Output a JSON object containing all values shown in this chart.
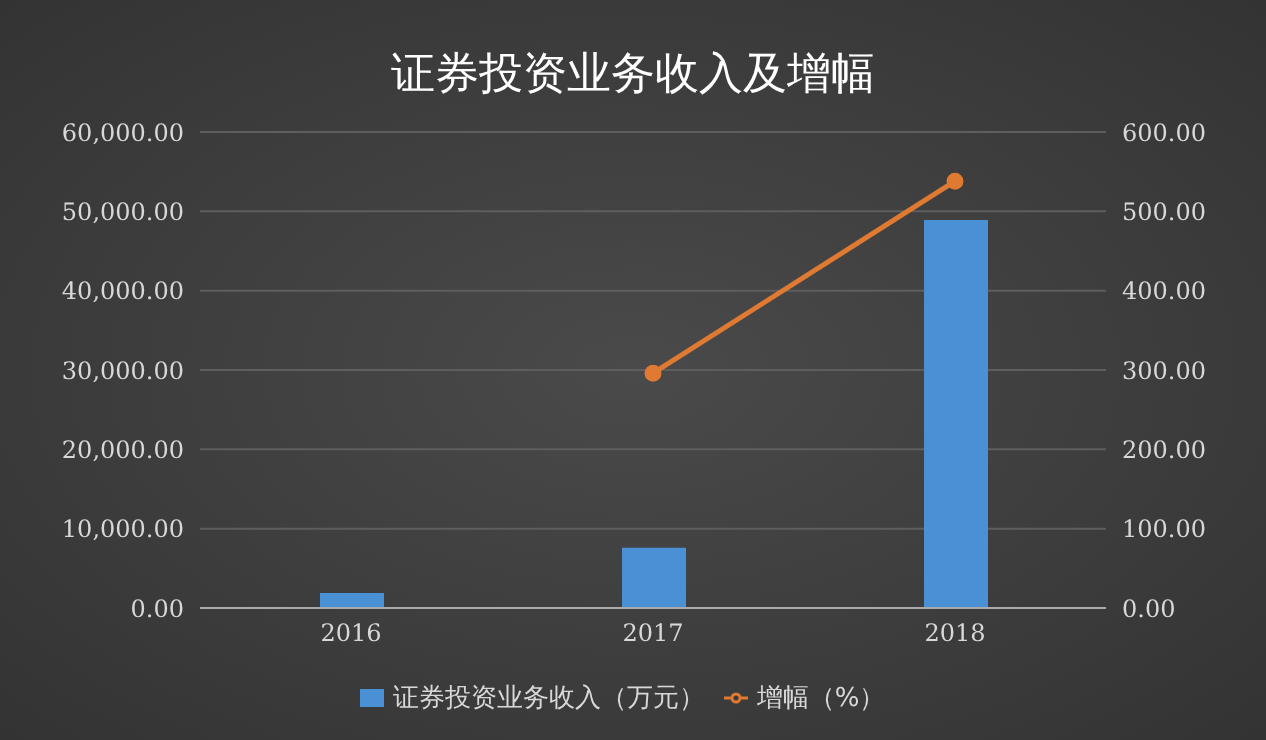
{
  "chart_data": {
    "type": "bar",
    "title": "证券投资业务收入及增幅",
    "categories": [
      "2016",
      "2017",
      "2018"
    ],
    "series": [
      {
        "name": "证券投资业务收入（万元）",
        "color": "#4a90d4",
        "values": [
          1900,
          7600,
          48900
        ]
      },
      {
        "name": "增幅（%）",
        "type": "line",
        "axis": "y2",
        "color": "#e07a32",
        "marker": "circle",
        "values": [
          null,
          296,
          538
        ]
      }
    ],
    "ylim": [
      0,
      60000
    ],
    "yticks": [
      {
        "value": 0,
        "label": "0.00"
      },
      {
        "value": 10000,
        "label": "10,000.00"
      },
      {
        "value": 20000,
        "label": "20,000.00"
      },
      {
        "value": 30000,
        "label": "30,000.00"
      },
      {
        "value": 40000,
        "label": "40,000.00"
      },
      {
        "value": 50000,
        "label": "50,000.00"
      },
      {
        "value": 60000,
        "label": "60,000.00"
      }
    ],
    "y2lim": [
      0,
      600
    ],
    "y2ticks": [
      {
        "value": 0,
        "label": "0.00"
      },
      {
        "value": 100,
        "label": "100.00"
      },
      {
        "value": 200,
        "label": "200.00"
      },
      {
        "value": 300,
        "label": "300.00"
      },
      {
        "value": 400,
        "label": "400.00"
      },
      {
        "value": 500,
        "label": "500.00"
      },
      {
        "value": 600,
        "label": "600.00"
      }
    ],
    "grid": "y",
    "legend": "bottom"
  }
}
